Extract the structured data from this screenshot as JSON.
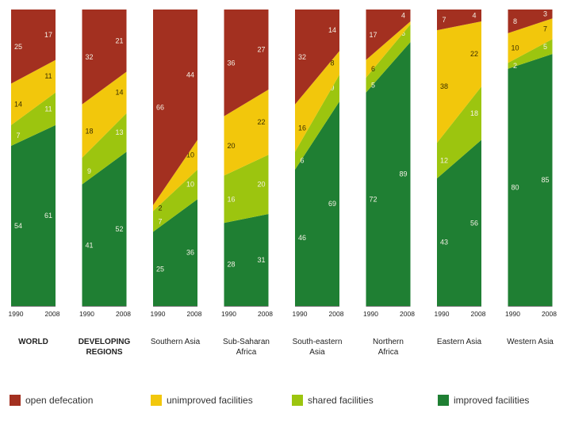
{
  "chart_data": {
    "type": "stacked-area-bar",
    "years": [
      "1990",
      "2008"
    ],
    "series_order": [
      "improved",
      "shared",
      "unimproved",
      "open"
    ],
    "legend": [
      {
        "key": "open",
        "label": "open defecation",
        "color": "#a33020"
      },
      {
        "key": "unimproved",
        "label": "unimproved facilities",
        "color": "#f2c70c"
      },
      {
        "key": "shared",
        "label": "shared facilities",
        "color": "#9cc50f"
      },
      {
        "key": "improved",
        "label": "improved facilities",
        "color": "#1f7f33"
      }
    ],
    "regions": [
      {
        "name_lines": [
          "WORLD"
        ],
        "bold": true,
        "y1990": {
          "open": 25,
          "unimproved": 14,
          "shared": 7,
          "improved": 54
        },
        "y2008": {
          "open": 17,
          "unimproved": 11,
          "shared": 11,
          "improved": 61
        }
      },
      {
        "name_lines": [
          "DEVELOPING",
          "REGIONS"
        ],
        "bold": true,
        "y1990": {
          "open": 32,
          "unimproved": 18,
          "shared": 9,
          "improved": 41
        },
        "y2008": {
          "open": 21,
          "unimproved": 14,
          "shared": 13,
          "improved": 52
        }
      },
      {
        "name_lines": [
          "Southern Asia"
        ],
        "bold": false,
        "y1990": {
          "open": 66,
          "unimproved": 2,
          "shared": 7,
          "improved": 25
        },
        "y2008": {
          "open": 44,
          "unimproved": 10,
          "shared": 10,
          "improved": 36
        }
      },
      {
        "name_lines": [
          "Sub-Saharan",
          "Africa"
        ],
        "bold": false,
        "y1990": {
          "open": 36,
          "unimproved": 20,
          "shared": 16,
          "improved": 28
        },
        "y2008": {
          "open": 27,
          "unimproved": 22,
          "shared": 20,
          "improved": 31
        }
      },
      {
        "name_lines": [
          "South-eastern",
          "Asia"
        ],
        "bold": false,
        "y1990": {
          "open": 32,
          "unimproved": 16,
          "shared": 6,
          "improved": 46
        },
        "y2008": {
          "open": 14,
          "unimproved": 8,
          "shared": 9,
          "improved": 69
        }
      },
      {
        "name_lines": [
          "Northern",
          "Africa"
        ],
        "bold": false,
        "y1990": {
          "open": 17,
          "unimproved": 6,
          "shared": 5,
          "improved": 72
        },
        "y2008": {
          "open": 4,
          "unimproved": 1,
          "shared": 6,
          "improved": 89
        }
      },
      {
        "name_lines": [
          "Eastern Asia"
        ],
        "bold": false,
        "y1990": {
          "open": 7,
          "unimproved": 38,
          "shared": 12,
          "improved": 43
        },
        "y2008": {
          "open": 4,
          "unimproved": 22,
          "shared": 18,
          "improved": 56
        }
      },
      {
        "name_lines": [
          "Western Asia"
        ],
        "bold": false,
        "y1990": {
          "open": 8,
          "unimproved": 10,
          "shared": 2,
          "improved": 80
        },
        "y2008": {
          "open": 3,
          "unimproved": 7,
          "shared": 5,
          "improved": 85
        }
      }
    ],
    "ylim": [
      0,
      100
    ]
  }
}
